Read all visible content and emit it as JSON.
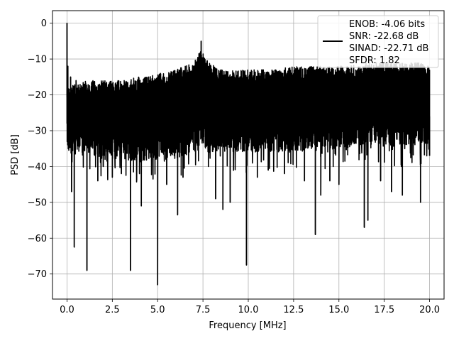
{
  "chart_data": {
    "type": "line",
    "title": "",
    "xlabel": "Frequency [MHz]",
    "ylabel": "PSD [dB]",
    "xlim": [
      -0.8,
      20.8
    ],
    "ylim": [
      -77,
      3.5
    ],
    "xticks": [
      0.0,
      2.5,
      5.0,
      7.5,
      10.0,
      12.5,
      15.0,
      17.5,
      20.0
    ],
    "xtick_labels": [
      "0.0",
      "2.5",
      "5.0",
      "7.5",
      "10.0",
      "12.5",
      "15.0",
      "17.5",
      "20.0"
    ],
    "yticks": [
      0,
      -10,
      -20,
      -30,
      -40,
      -50,
      -60,
      -70
    ],
    "ytick_labels": [
      "0",
      "−10",
      "−20",
      "−30",
      "−40",
      "−50",
      "−60",
      "−70"
    ],
    "grid": true,
    "legend_position": "top-right",
    "legend": [
      "ENOB: -4.06 bits",
      "SNR: -22.68 dB",
      "SINAD: -22.71 dB",
      "SFDR: 1.82"
    ],
    "series_color": "#000000",
    "series": [
      {
        "description_points": [
          [
            0.0,
            0.0
          ],
          [
            0.02,
            -33
          ],
          [
            0.05,
            -12
          ],
          [
            0.1,
            -27
          ],
          [
            0.2,
            -15
          ],
          [
            0.25,
            -47
          ],
          [
            0.4,
            -62.5
          ],
          [
            0.5,
            -16
          ],
          [
            1.1,
            -69
          ],
          [
            1.7,
            -44
          ],
          [
            2.0,
            -40
          ],
          [
            2.5,
            -43
          ],
          [
            3.0,
            -42
          ],
          [
            3.5,
            -69
          ],
          [
            4.0,
            -42
          ],
          [
            4.1,
            -51
          ],
          [
            5.0,
            -73
          ],
          [
            5.5,
            -45
          ],
          [
            6.1,
            -53.5
          ],
          [
            6.4,
            -43
          ],
          [
            7.3,
            -9.5
          ],
          [
            7.4,
            -5
          ],
          [
            7.8,
            -40
          ],
          [
            8.2,
            -49
          ],
          [
            8.6,
            -52
          ],
          [
            9.0,
            -50
          ],
          [
            9.9,
            -67.5
          ],
          [
            10.5,
            -43
          ],
          [
            11.1,
            -41
          ],
          [
            12.0,
            -42
          ],
          [
            13.1,
            -44
          ],
          [
            13.7,
            -59
          ],
          [
            14.0,
            -48
          ],
          [
            14.5,
            -44
          ],
          [
            15.0,
            -45
          ],
          [
            16.4,
            -57
          ],
          [
            16.6,
            -55
          ],
          [
            17.3,
            -44
          ],
          [
            17.9,
            -47
          ],
          [
            18.5,
            -48
          ],
          [
            19.5,
            -50
          ],
          [
            20.0,
            -37
          ]
        ],
        "envelope": [
          [
            0.0,
            -18,
            -28
          ],
          [
            1.0,
            -16,
            -29
          ],
          [
            2.0,
            -16,
            -30
          ],
          [
            3.0,
            -16,
            -30
          ],
          [
            4.0,
            -15,
            -31
          ],
          [
            4.5,
            -15,
            -30
          ],
          [
            5.0,
            -14,
            -30
          ],
          [
            5.5,
            -14,
            -30
          ],
          [
            6.0,
            -13,
            -30
          ],
          [
            6.5,
            -12,
            -29
          ],
          [
            7.0,
            -11,
            -28
          ],
          [
            7.4,
            -7,
            -27
          ],
          [
            7.8,
            -11,
            -28
          ],
          [
            8.5,
            -13,
            -28
          ],
          [
            9.5,
            -13,
            -28
          ],
          [
            10.5,
            -13,
            -28
          ],
          [
            11.5,
            -13,
            -28
          ],
          [
            12.5,
            -12,
            -28
          ],
          [
            13.5,
            -12,
            -27
          ],
          [
            14.5,
            -12,
            -27
          ],
          [
            15.5,
            -12,
            -27
          ],
          [
            16.5,
            -11,
            -26
          ],
          [
            17.5,
            -11,
            -26
          ],
          [
            18.5,
            -11,
            -26
          ],
          [
            19.5,
            -11,
            -26
          ],
          [
            20.0,
            -12,
            -26
          ]
        ]
      }
    ]
  }
}
